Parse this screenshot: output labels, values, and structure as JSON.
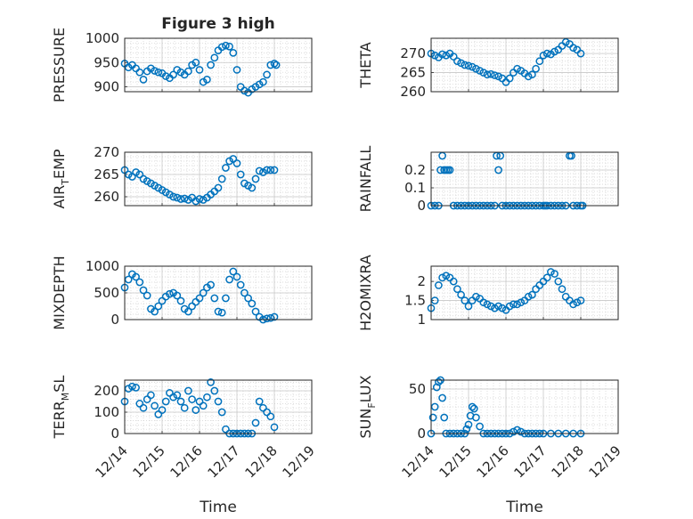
{
  "title": "Figure 3 high",
  "x_ticks": [
    "12/14",
    "12/15",
    "12/16",
    "12/17",
    "12/18",
    "12/19"
  ],
  "x_label": "Time",
  "marker_color": "#0072BD",
  "chart_data": [
    {
      "type": "scatter",
      "ylabel": "PRESSURE",
      "ylim": [
        890,
        1000
      ],
      "yticks": [
        900,
        950,
        1000
      ],
      "grid": true,
      "x": [
        14.0,
        14.1,
        14.2,
        14.3,
        14.4,
        14.5,
        14.6,
        14.7,
        14.8,
        14.9,
        15.0,
        15.1,
        15.2,
        15.3,
        15.4,
        15.5,
        15.6,
        15.7,
        15.8,
        15.9,
        16.0,
        16.1,
        16.2,
        16.3,
        16.4,
        16.5,
        16.6,
        16.7,
        16.8,
        16.9,
        17.0,
        17.1,
        17.2,
        17.3,
        17.4,
        17.5,
        17.6,
        17.7,
        17.8,
        17.9,
        18.0,
        18.05
      ],
      "y": [
        948,
        940,
        945,
        938,
        930,
        915,
        932,
        938,
        933,
        930,
        928,
        922,
        918,
        925,
        935,
        930,
        925,
        932,
        945,
        950,
        935,
        910,
        915,
        945,
        960,
        975,
        982,
        985,
        983,
        970,
        935,
        900,
        892,
        888,
        895,
        900,
        905,
        910,
        925,
        945,
        948,
        945
      ]
    },
    {
      "type": "scatter",
      "ylabel": "THETA",
      "ylim": [
        260,
        274
      ],
      "yticks": [
        260,
        265,
        270
      ],
      "grid": true,
      "x": [
        14.0,
        14.1,
        14.2,
        14.3,
        14.4,
        14.5,
        14.6,
        14.7,
        14.8,
        14.9,
        15.0,
        15.1,
        15.2,
        15.3,
        15.4,
        15.5,
        15.6,
        15.7,
        15.8,
        15.9,
        16.0,
        16.1,
        16.2,
        16.3,
        16.4,
        16.5,
        16.6,
        16.7,
        16.8,
        16.9,
        17.0,
        17.1,
        17.2,
        17.3,
        17.4,
        17.5,
        17.6,
        17.7,
        17.8,
        17.9,
        18.0
      ],
      "y": [
        270,
        269.5,
        269,
        269.8,
        269.5,
        270,
        269.2,
        268,
        267.5,
        267,
        266.8,
        266.5,
        266,
        265.5,
        265,
        264.5,
        264.6,
        264.3,
        264,
        263.5,
        262.5,
        263.5,
        265,
        266,
        265.5,
        264.8,
        264,
        264.5,
        266,
        268,
        269.5,
        270,
        269.8,
        270.5,
        271,
        272,
        273,
        272.5,
        271.5,
        271,
        270
      ]
    },
    {
      "type": "scatter",
      "ylabel": "AIR_TEMP",
      "ylim": [
        258,
        270
      ],
      "yticks": [
        260,
        265,
        270
      ],
      "grid": true,
      "x": [
        14.0,
        14.1,
        14.2,
        14.3,
        14.4,
        14.5,
        14.6,
        14.7,
        14.8,
        14.9,
        15.0,
        15.1,
        15.2,
        15.3,
        15.4,
        15.5,
        15.6,
        15.7,
        15.8,
        15.9,
        16.0,
        16.1,
        16.2,
        16.3,
        16.4,
        16.5,
        16.6,
        16.7,
        16.8,
        16.9,
        17.0,
        17.1,
        17.2,
        17.3,
        17.4,
        17.5,
        17.6,
        17.7,
        17.8,
        17.9,
        18.0
      ],
      "y": [
        266,
        265,
        264.5,
        265.5,
        265,
        264,
        263.5,
        263,
        262.5,
        262,
        261.5,
        261,
        260.5,
        260,
        259.8,
        259.5,
        259.6,
        259.3,
        259.8,
        259,
        259.5,
        259.3,
        259.8,
        260.5,
        261.2,
        262,
        264,
        266.5,
        268,
        268.5,
        267.5,
        265,
        263,
        262.5,
        262,
        264,
        265.8,
        265.5,
        266,
        266,
        266
      ]
    },
    {
      "type": "scatter",
      "ylabel": "RAINFALL",
      "ylim": [
        0,
        0.3
      ],
      "yticks": [
        0,
        0.1,
        0.2
      ],
      "grid": true,
      "x": [
        14.0,
        14.1,
        14.2,
        14.25,
        14.3,
        14.35,
        14.4,
        14.45,
        14.5,
        14.6,
        14.7,
        14.8,
        14.9,
        15.0,
        15.1,
        15.2,
        15.3,
        15.4,
        15.5,
        15.6,
        15.7,
        15.75,
        15.8,
        15.85,
        15.9,
        16.0,
        16.1,
        16.2,
        16.3,
        16.4,
        16.5,
        16.6,
        16.7,
        16.8,
        16.9,
        17.0,
        17.05,
        17.1,
        17.2,
        17.3,
        17.4,
        17.5,
        17.6,
        17.7,
        17.75,
        17.8,
        17.9,
        18.0,
        18.05
      ],
      "y": [
        0,
        0,
        0,
        0.2,
        0.28,
        0.2,
        0.2,
        0.2,
        0.2,
        0,
        0,
        0,
        0,
        0,
        0,
        0,
        0,
        0,
        0,
        0,
        0,
        0.28,
        0.2,
        0.28,
        0,
        0,
        0,
        0,
        0,
        0,
        0,
        0,
        0,
        0,
        0,
        0,
        0,
        0,
        0,
        0,
        0,
        0,
        0,
        0.28,
        0.28,
        0,
        0,
        0,
        0
      ]
    },
    {
      "type": "scatter",
      "ylabel": "MIXDEPTH",
      "ylim": [
        0,
        1000
      ],
      "yticks": [
        0,
        500,
        1000
      ],
      "grid": true,
      "x": [
        14.0,
        14.1,
        14.2,
        14.3,
        14.4,
        14.5,
        14.6,
        14.7,
        14.8,
        14.9,
        15.0,
        15.1,
        15.2,
        15.3,
        15.4,
        15.5,
        15.6,
        15.7,
        15.8,
        15.9,
        16.0,
        16.1,
        16.2,
        16.3,
        16.4,
        16.5,
        16.6,
        16.7,
        16.8,
        16.9,
        17.0,
        17.1,
        17.2,
        17.3,
        17.4,
        17.5,
        17.6,
        17.7,
        17.8,
        17.9,
        18.0
      ],
      "y": [
        600,
        750,
        850,
        800,
        700,
        550,
        450,
        200,
        150,
        250,
        350,
        430,
        480,
        500,
        450,
        350,
        200,
        150,
        250,
        330,
        400,
        500,
        600,
        650,
        400,
        150,
        130,
        400,
        750,
        900,
        800,
        650,
        500,
        400,
        300,
        150,
        50,
        0,
        20,
        30,
        50
      ]
    },
    {
      "type": "scatter",
      "ylabel": "H2OMIXRA",
      "ylim": [
        1,
        2.4
      ],
      "yticks": [
        1,
        1.5,
        2
      ],
      "grid": true,
      "x": [
        14.0,
        14.1,
        14.2,
        14.3,
        14.4,
        14.5,
        14.6,
        14.7,
        14.8,
        14.9,
        15.0,
        15.1,
        15.2,
        15.3,
        15.4,
        15.5,
        15.6,
        15.7,
        15.8,
        15.9,
        16.0,
        16.1,
        16.2,
        16.3,
        16.4,
        16.5,
        16.6,
        16.7,
        16.8,
        16.9,
        17.0,
        17.1,
        17.2,
        17.3,
        17.4,
        17.5,
        17.6,
        17.7,
        17.8,
        17.9,
        18.0
      ],
      "y": [
        1.3,
        1.5,
        1.9,
        2.1,
        2.15,
        2.1,
        2,
        1.8,
        1.65,
        1.5,
        1.35,
        1.5,
        1.6,
        1.55,
        1.45,
        1.4,
        1.35,
        1.3,
        1.35,
        1.3,
        1.25,
        1.35,
        1.4,
        1.4,
        1.45,
        1.5,
        1.6,
        1.65,
        1.8,
        1.9,
        2,
        2.1,
        2.25,
        2.2,
        2.0,
        1.8,
        1.6,
        1.5,
        1.4,
        1.45,
        1.5
      ]
    },
    {
      "type": "scatter",
      "ylabel": "TERR_MSL",
      "ylim": [
        0,
        250
      ],
      "yticks": [
        0,
        100,
        200
      ],
      "grid": true,
      "x": [
        14.0,
        14.1,
        14.2,
        14.3,
        14.4,
        14.5,
        14.6,
        14.7,
        14.8,
        14.9,
        15.0,
        15.1,
        15.2,
        15.3,
        15.4,
        15.5,
        15.6,
        15.7,
        15.8,
        15.9,
        16.0,
        16.1,
        16.2,
        16.3,
        16.4,
        16.5,
        16.6,
        16.7,
        16.8,
        16.9,
        17.0,
        17.1,
        17.2,
        17.3,
        17.4,
        17.5,
        17.6,
        17.7,
        17.8,
        17.9,
        18.0
      ],
      "y": [
        150,
        210,
        220,
        215,
        140,
        120,
        160,
        180,
        130,
        90,
        110,
        150,
        190,
        170,
        180,
        150,
        120,
        200,
        160,
        110,
        150,
        130,
        170,
        240,
        200,
        150,
        100,
        20,
        0,
        0,
        0,
        0,
        0,
        0,
        0,
        50,
        150,
        120,
        100,
        80,
        30
      ]
    },
    {
      "type": "scatter",
      "ylabel": "SUN_FLUX",
      "ylim": [
        0,
        60
      ],
      "yticks": [
        0,
        50
      ],
      "grid": true,
      "x": [
        14.0,
        14.05,
        14.1,
        14.15,
        14.2,
        14.25,
        14.3,
        14.35,
        14.4,
        14.5,
        14.6,
        14.7,
        14.8,
        14.9,
        14.95,
        15.0,
        15.05,
        15.1,
        15.15,
        15.2,
        15.3,
        15.4,
        15.5,
        15.6,
        15.7,
        15.8,
        15.9,
        16.0,
        16.1,
        16.2,
        16.3,
        16.4,
        16.5,
        16.6,
        16.7,
        16.8,
        16.9,
        17.0,
        17.2,
        17.4,
        17.6,
        17.8,
        18.0
      ],
      "y": [
        0,
        18,
        30,
        52,
        58,
        60,
        40,
        18,
        0,
        0,
        0,
        0,
        0,
        0,
        5,
        10,
        20,
        30,
        28,
        18,
        8,
        0,
        0,
        0,
        0,
        0,
        0,
        0,
        0,
        2,
        4,
        2,
        0,
        0,
        0,
        0,
        0,
        0,
        0,
        0,
        0,
        0,
        0
      ]
    }
  ]
}
